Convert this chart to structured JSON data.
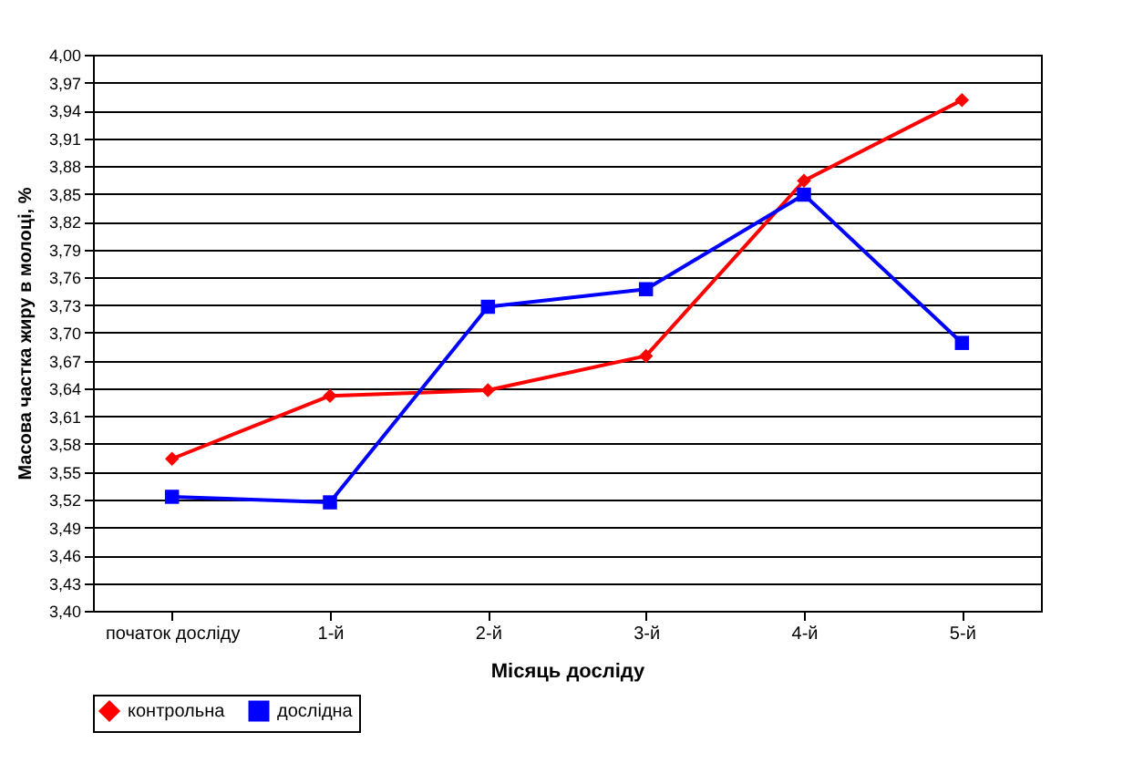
{
  "chart_data": {
    "type": "line",
    "xlabel": "Місяць досліду",
    "ylabel": "Масова частка жиру в молоці, %",
    "categories": [
      "початок досліду",
      "1-й",
      "2-й",
      "3-й",
      "4-й",
      "5-й"
    ],
    "series": [
      {
        "name": "контрольна",
        "color": "#ff0000",
        "marker": "diamond",
        "values": [
          3.564,
          3.632,
          3.638,
          3.675,
          3.864,
          3.951
        ]
      },
      {
        "name": "дослідна",
        "color": "#0000ff",
        "marker": "square",
        "values": [
          3.523,
          3.517,
          3.728,
          3.747,
          3.849,
          3.689
        ]
      }
    ],
    "ylim": [
      3.4,
      4.0
    ],
    "yticks": [
      {
        "value": 3.4,
        "label": "3,40"
      },
      {
        "value": 3.43,
        "label": "3,43"
      },
      {
        "value": 3.46,
        "label": "3,46"
      },
      {
        "value": 3.49,
        "label": "3,49"
      },
      {
        "value": 3.52,
        "label": "3,52"
      },
      {
        "value": 3.55,
        "label": "3,55"
      },
      {
        "value": 3.58,
        "label": "3,58"
      },
      {
        "value": 3.61,
        "label": "3,61"
      },
      {
        "value": 3.64,
        "label": "3,64"
      },
      {
        "value": 3.67,
        "label": "3,67"
      },
      {
        "value": 3.7,
        "label": "3,70"
      },
      {
        "value": 3.73,
        "label": "3,73"
      },
      {
        "value": 3.76,
        "label": "3,76"
      },
      {
        "value": 3.79,
        "label": "3,79"
      },
      {
        "value": 3.82,
        "label": "3,82"
      },
      {
        "value": 3.85,
        "label": "3,85"
      },
      {
        "value": 3.88,
        "label": "3,88"
      },
      {
        "value": 3.91,
        "label": "3,91"
      },
      {
        "value": 3.94,
        "label": "3,94"
      },
      {
        "value": 3.97,
        "label": "3,97"
      },
      {
        "value": 4.0,
        "label": "4,00"
      }
    ],
    "grid": "y",
    "legend": "bottom",
    "line_style": "solid"
  }
}
